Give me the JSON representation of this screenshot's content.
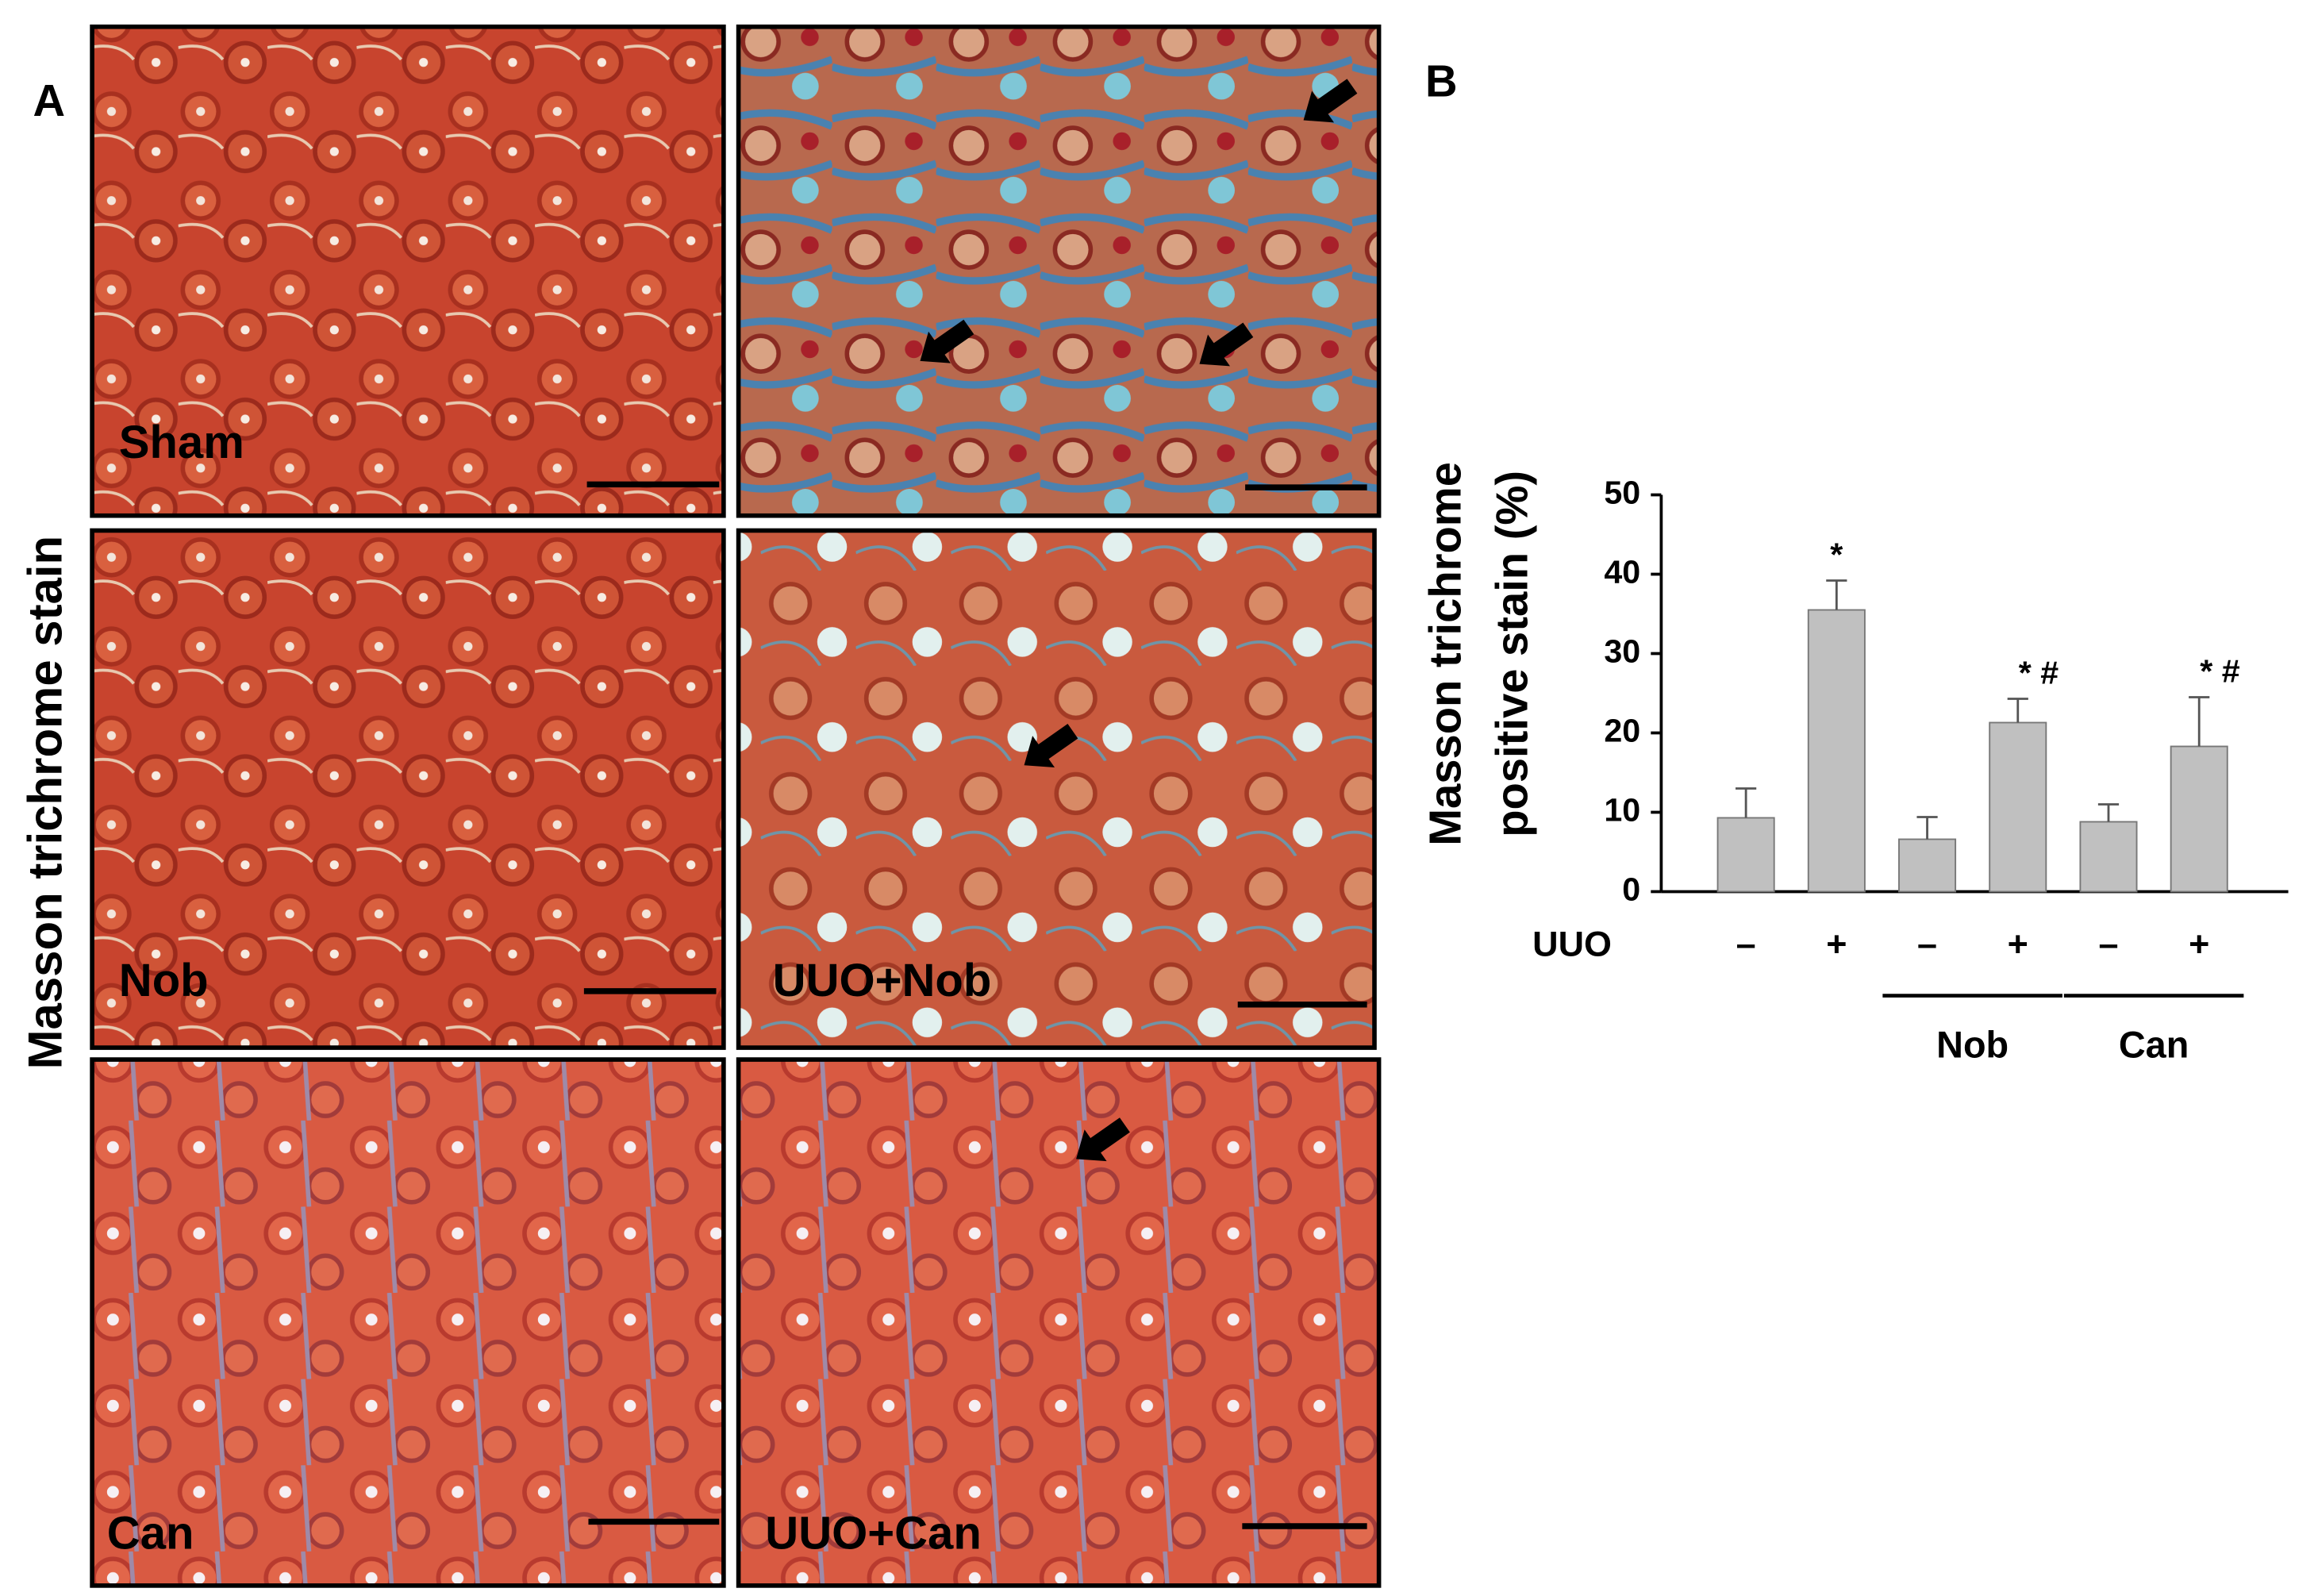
{
  "panel_a": {
    "letter": "A",
    "ylabel": "Masson trichrome  stain",
    "labels": [
      "Sham",
      null,
      "Nob",
      "UUO+Nob",
      "Can",
      "UUO+Can"
    ]
  },
  "chart_data": {
    "type": "bar",
    "letter": "B",
    "ylabel": [
      "Masson trichrome",
      "positive stain (%)"
    ],
    "categories": [
      "–",
      "+",
      "–",
      "+",
      "–",
      "+"
    ],
    "category_row_label": "UUO",
    "groups": [
      {
        "label": "Nob",
        "from": 2,
        "to": 3
      },
      {
        "label": "Can",
        "from": 4,
        "to": 5
      }
    ],
    "values": [
      9.3,
      35.5,
      6.6,
      21.3,
      8.8,
      18.3
    ],
    "errors": [
      3.7,
      3.7,
      2.8,
      3.0,
      2.2,
      6.2
    ],
    "value_annotations": [
      null,
      "*",
      null,
      "* #",
      null,
      "* #"
    ],
    "color": "#c0c0c0",
    "ylim": [
      0,
      50
    ],
    "yticks": [
      0,
      10,
      20,
      30,
      40,
      50
    ]
  }
}
